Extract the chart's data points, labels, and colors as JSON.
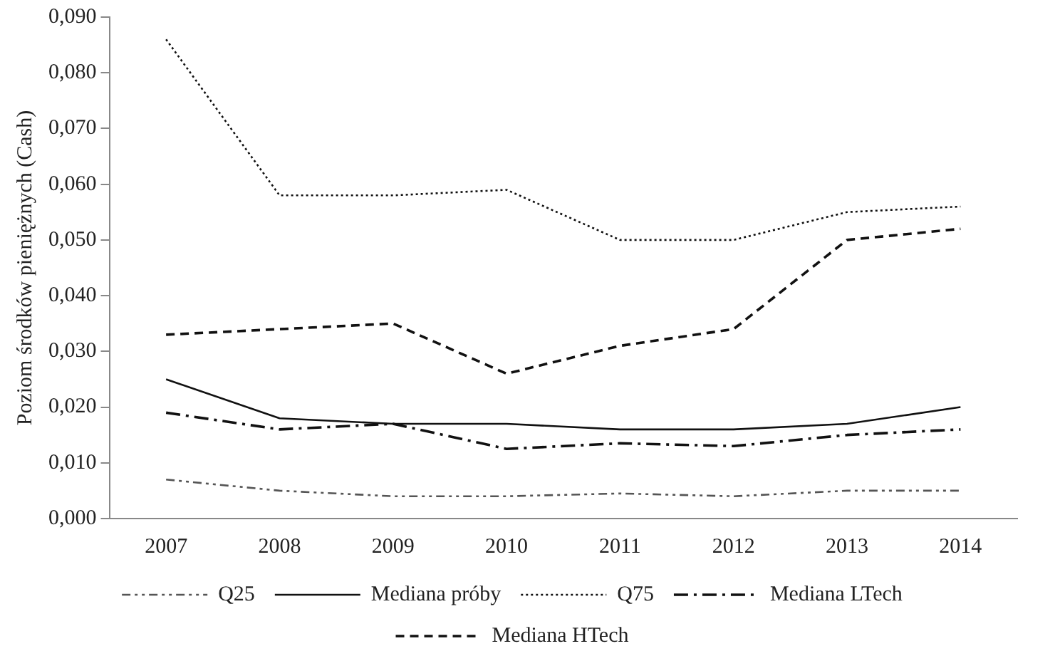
{
  "chart_data": {
    "type": "line",
    "ylabel": "Poziom środków pieniężnych (Cash)",
    "categories": [
      "2007",
      "2008",
      "2009",
      "2010",
      "2011",
      "2012",
      "2013",
      "2014"
    ],
    "series": [
      {
        "name": "Q25",
        "color": "#555555",
        "line_style": "dashdotdot",
        "values": [
          0.007,
          0.005,
          0.004,
          0.004,
          0.0045,
          0.004,
          0.005,
          0.005
        ]
      },
      {
        "name": "Mediana próby",
        "color": "#111111",
        "line_style": "solid",
        "values": [
          0.025,
          0.018,
          0.017,
          0.017,
          0.016,
          0.016,
          0.017,
          0.02
        ]
      },
      {
        "name": "Q75",
        "color": "#111111",
        "line_style": "dotted",
        "values": [
          0.086,
          0.058,
          0.058,
          0.059,
          0.05,
          0.05,
          0.055,
          0.056
        ]
      },
      {
        "name": "Mediana LTech",
        "color": "#111111",
        "line_style": "dashdot",
        "values": [
          0.019,
          0.016,
          0.017,
          0.0125,
          0.0135,
          0.013,
          0.015,
          0.016
        ]
      },
      {
        "name": "Mediana HTech",
        "color": "#111111",
        "line_style": "dashed",
        "values": [
          0.033,
          0.034,
          0.035,
          0.026,
          0.031,
          0.034,
          0.05,
          0.052
        ]
      }
    ],
    "ylim": [
      0,
      0.09
    ],
    "yticks": [
      {
        "value": 0,
        "label": "0,000"
      },
      {
        "value": 0.01,
        "label": "0,010"
      },
      {
        "value": 0.02,
        "label": "0,020"
      },
      {
        "value": 0.03,
        "label": "0,030"
      },
      {
        "value": 0.04,
        "label": "0,040"
      },
      {
        "value": 0.05,
        "label": "0,050"
      },
      {
        "value": 0.06,
        "label": "0,060"
      },
      {
        "value": 0.07,
        "label": "0,070"
      },
      {
        "value": 0.08,
        "label": "0,080"
      },
      {
        "value": 0.09,
        "label": "0,090"
      }
    ],
    "grid": false,
    "legend": "bottom",
    "marker": "none"
  }
}
